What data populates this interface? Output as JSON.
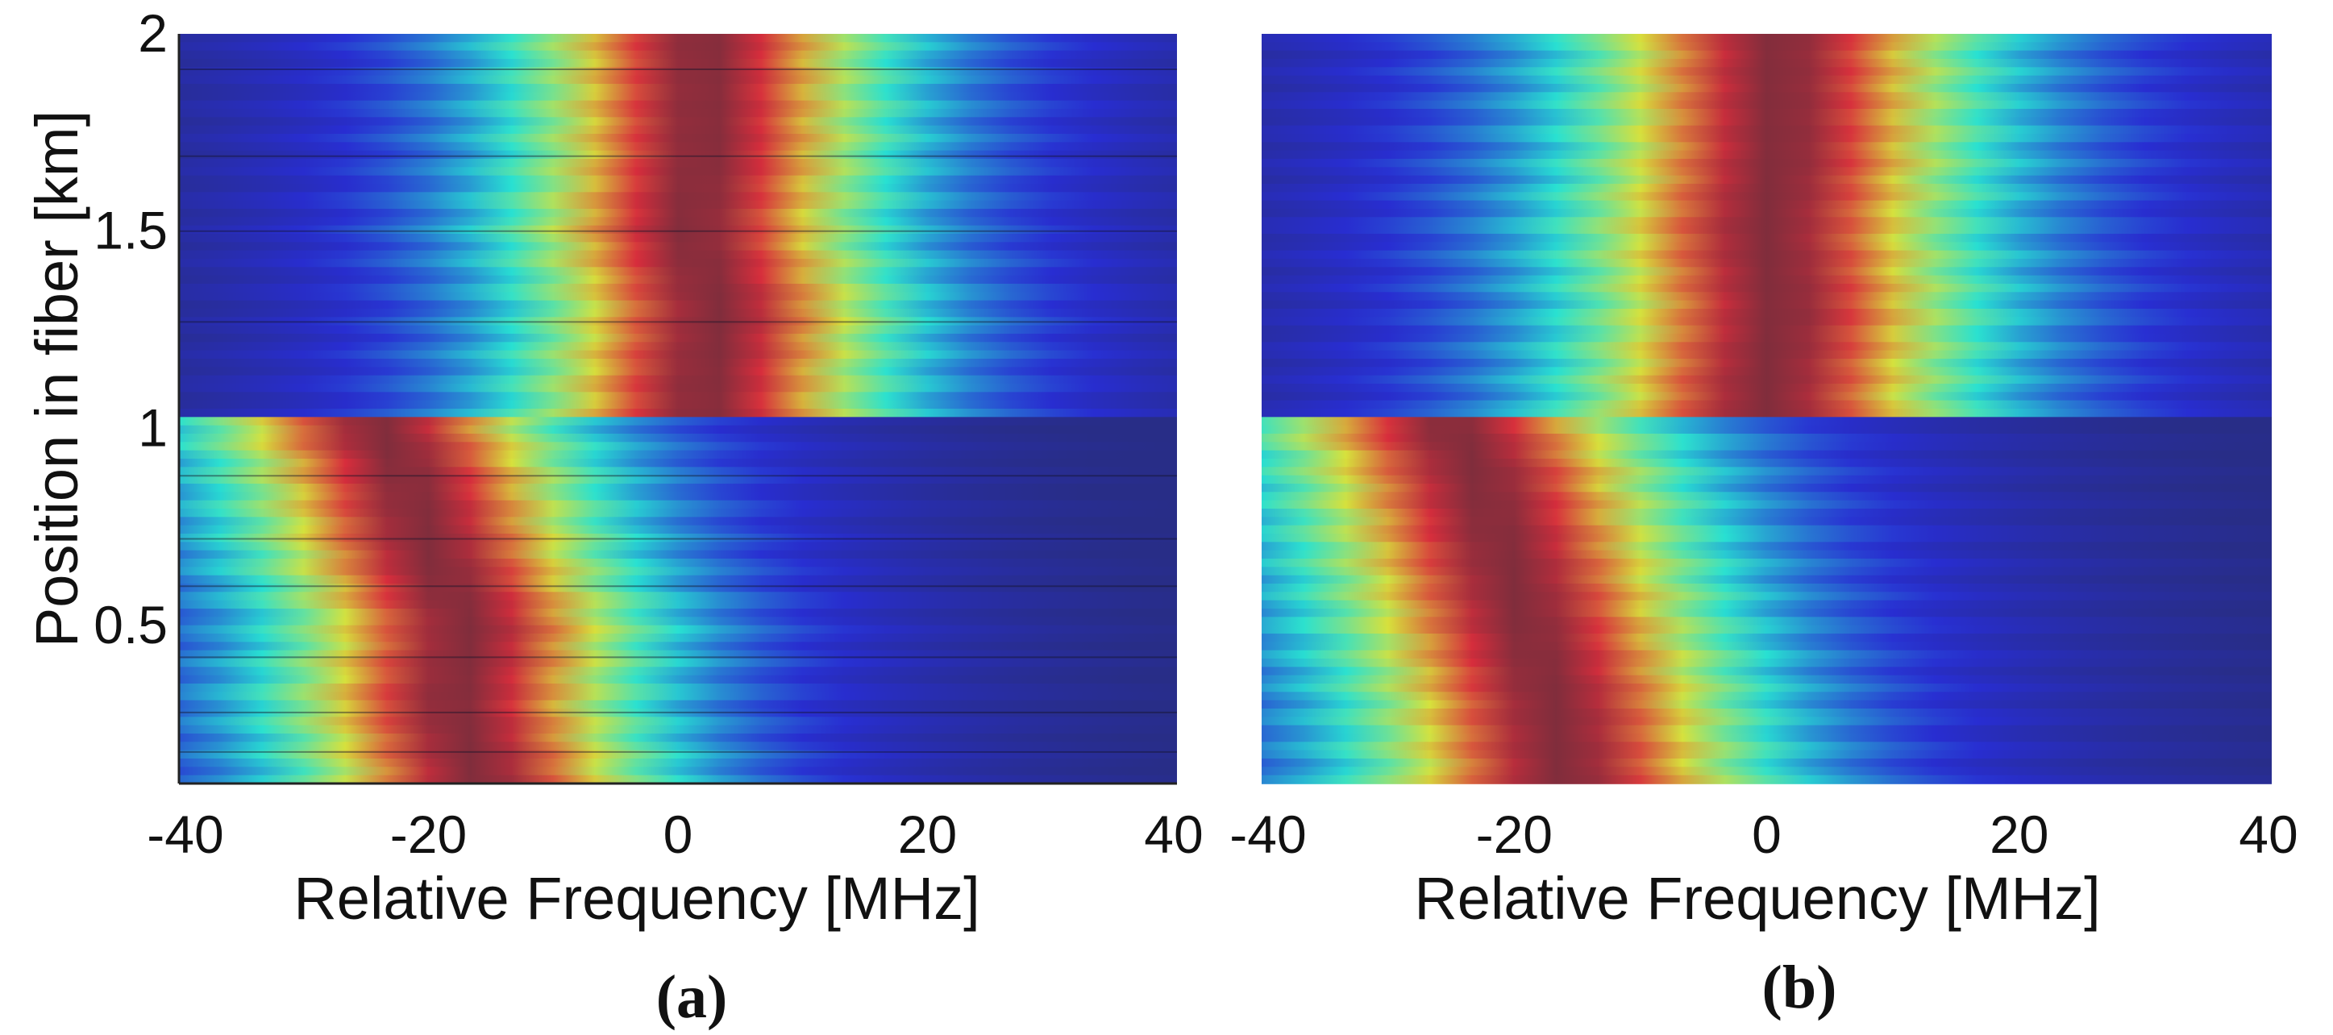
{
  "chart_data": [
    {
      "type": "heatmap",
      "panel_label": "(a)",
      "xlabel": "Relative Frequency [MHz]",
      "ylabel": "Position in fiber [km]",
      "xlim": [
        -40,
        40
      ],
      "ylim": [
        0.1,
        2
      ],
      "xticks": [
        -40,
        -20,
        0,
        20,
        40
      ],
      "xtick_labels": [
        "-40",
        "-20",
        "0",
        "20",
        "40"
      ],
      "yticks": [
        0.5,
        1,
        1.5,
        2
      ],
      "ytick_labels": [
        "0.5",
        "1",
        "1.5",
        "2"
      ],
      "colormap": "jet",
      "transition_km": 1.02,
      "bfs_profile": [
        {
          "position_km": 0.1,
          "center_mhz": -16
        },
        {
          "position_km": 0.3,
          "center_mhz": -18
        },
        {
          "position_km": 0.5,
          "center_mhz": -17
        },
        {
          "position_km": 0.7,
          "center_mhz": -20
        },
        {
          "position_km": 0.9,
          "center_mhz": -22
        },
        {
          "position_km": 1.0,
          "center_mhz": -24
        },
        {
          "position_km": 1.1,
          "center_mhz": 2
        },
        {
          "position_km": 1.3,
          "center_mhz": 3
        },
        {
          "position_km": 1.5,
          "center_mhz": 1
        },
        {
          "position_km": 1.7,
          "center_mhz": 2
        },
        {
          "position_km": 2.0,
          "center_mhz": 2
        }
      ],
      "linewidth_mhz": 13,
      "dark_rows_km": [
        0.18,
        0.28,
        0.42,
        0.6,
        0.72,
        0.88,
        1.27,
        1.5,
        1.69,
        1.91
      ]
    },
    {
      "type": "heatmap",
      "panel_label": "(b)",
      "xlabel": "Relative Frequency [MHz]",
      "xlim": [
        -40,
        40
      ],
      "ylim": [
        0.1,
        2
      ],
      "xticks": [
        -40,
        -20,
        0,
        20,
        40
      ],
      "xtick_labels": [
        "-40",
        "-20",
        "0",
        "20",
        "40"
      ],
      "colormap": "jet",
      "transition_km": 1.02,
      "bfs_profile": [
        {
          "position_km": 0.1,
          "center_mhz": -16
        },
        {
          "position_km": 0.3,
          "center_mhz": -17
        },
        {
          "position_km": 0.5,
          "center_mhz": -19
        },
        {
          "position_km": 0.7,
          "center_mhz": -21
        },
        {
          "position_km": 0.9,
          "center_mhz": -23
        },
        {
          "position_km": 1.0,
          "center_mhz": -25
        },
        {
          "position_km": 1.1,
          "center_mhz": 0
        },
        {
          "position_km": 1.3,
          "center_mhz": 1
        },
        {
          "position_km": 1.5,
          "center_mhz": 0
        },
        {
          "position_km": 1.7,
          "center_mhz": 1
        },
        {
          "position_km": 2.0,
          "center_mhz": 1
        }
      ],
      "linewidth_mhz": 14,
      "dark_rows_km": []
    }
  ]
}
